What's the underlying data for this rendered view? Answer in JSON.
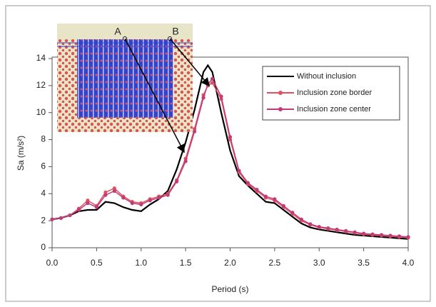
{
  "chart_data": {
    "type": "line",
    "xlabel": "Period (s)",
    "ylabel": "Sa (m/s²)",
    "annotations": [
      "A",
      "B"
    ],
    "x": [
      0.0,
      0.1,
      0.2,
      0.3,
      0.4,
      0.5,
      0.6,
      0.7,
      0.8,
      0.9,
      1.0,
      1.1,
      1.2,
      1.3,
      1.4,
      1.5,
      1.6,
      1.7,
      1.75,
      1.8,
      1.9,
      2.0,
      2.1,
      2.2,
      2.3,
      2.4,
      2.5,
      2.6,
      2.7,
      2.8,
      2.9,
      3.0,
      3.1,
      3.2,
      3.3,
      3.4,
      3.5,
      3.6,
      3.7,
      3.8,
      3.9,
      4.0
    ],
    "series": [
      {
        "name": "Without inclusion",
        "color": "#000000",
        "markers": false,
        "values": [
          2.1,
          2.2,
          2.4,
          2.7,
          2.8,
          2.8,
          3.4,
          3.3,
          3.0,
          2.8,
          2.7,
          3.2,
          3.6,
          4.2,
          5.8,
          7.8,
          10.2,
          13.0,
          13.5,
          13.0,
          10.0,
          7.2,
          5.3,
          4.6,
          4.0,
          3.4,
          3.3,
          2.8,
          2.3,
          1.8,
          1.5,
          1.35,
          1.25,
          1.15,
          1.05,
          0.95,
          0.9,
          0.85,
          0.8,
          0.75,
          0.7,
          0.65
        ]
      },
      {
        "name": "Inclusion zone border",
        "color": "#e2505e",
        "markers": true,
        "values": [
          2.1,
          2.2,
          2.4,
          2.9,
          3.5,
          3.1,
          4.1,
          4.4,
          3.8,
          3.4,
          3.3,
          3.6,
          3.8,
          4.0,
          5.0,
          6.6,
          8.8,
          11.3,
          12.0,
          12.2,
          11.0,
          8.0,
          5.6,
          4.7,
          4.2,
          3.7,
          3.5,
          3.0,
          2.5,
          2.0,
          1.7,
          1.5,
          1.4,
          1.3,
          1.2,
          1.1,
          1.0,
          0.95,
          0.9,
          0.85,
          0.8,
          0.75
        ]
      },
      {
        "name": "Inclusion zone center",
        "color": "#c03c78",
        "markers": true,
        "values": [
          2.1,
          2.2,
          2.4,
          2.8,
          3.3,
          3.0,
          3.9,
          4.2,
          3.7,
          3.3,
          3.2,
          3.5,
          3.7,
          3.9,
          4.9,
          6.4,
          8.6,
          11.1,
          12.1,
          12.5,
          11.2,
          8.2,
          5.7,
          4.8,
          4.3,
          3.8,
          3.6,
          3.1,
          2.6,
          2.1,
          1.75,
          1.55,
          1.45,
          1.35,
          1.25,
          1.15,
          1.05,
          1.0,
          0.95,
          0.9,
          0.85,
          0.8
        ]
      }
    ],
    "xlim": [
      0,
      4
    ],
    "ylim": [
      0,
      14
    ],
    "xticks": [
      {
        "value": 0,
        "label": "0.0"
      },
      0.5,
      {
        "value": 1,
        "label": "1.0"
      },
      1.5,
      {
        "value": 2,
        "label": "2.0"
      },
      2.5,
      {
        "value": 3,
        "label": "3.0"
      },
      3.5,
      {
        "value": 4,
        "label": "4.0"
      }
    ],
    "yticks": [
      0,
      2,
      4,
      6,
      8,
      10,
      12,
      14
    ],
    "legend": "upper right"
  }
}
